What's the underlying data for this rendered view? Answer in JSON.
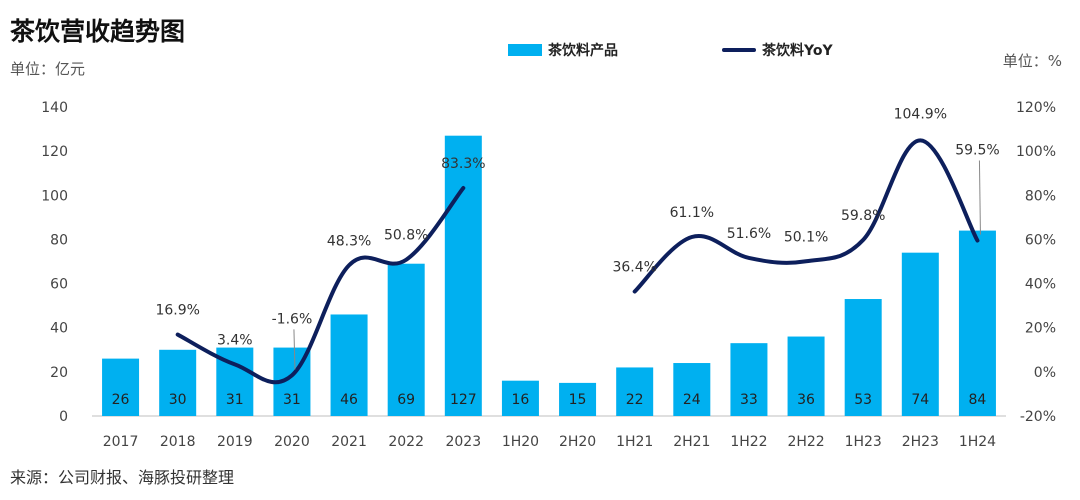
{
  "title": "茶饮营收趋势图",
  "unit_left": "单位：亿元",
  "unit_right": "单位：%",
  "source": "来源：公司财报、海豚投研整理",
  "colors": {
    "bar": "#00b0f0",
    "line": "#0d1f5c"
  },
  "chart_data": {
    "type": "bar",
    "categories": [
      "2017",
      "2018",
      "2019",
      "2020",
      "2021",
      "2022",
      "2023",
      "1H20",
      "2H20",
      "1H21",
      "2H21",
      "1H22",
      "2H22",
      "1H23",
      "2H23",
      "1H24"
    ],
    "series": [
      {
        "name": "茶饮料产品",
        "type": "bar",
        "axis": "left",
        "values": [
          26,
          30,
          31,
          31,
          46,
          69,
          127,
          16,
          15,
          22,
          24,
          33,
          36,
          53,
          74,
          84
        ],
        "labels": [
          "26",
          "30",
          "31",
          "31",
          "46",
          "69",
          "127",
          "16",
          "15",
          "22",
          "24",
          "33",
          "36",
          "53",
          "74",
          "84"
        ]
      },
      {
        "name": "茶饮料YoY",
        "type": "line",
        "axis": "right",
        "values": [
          null,
          16.9,
          3.4,
          -1.6,
          48.3,
          50.8,
          83.3,
          null,
          null,
          36.4,
          61.1,
          51.6,
          50.1,
          59.8,
          104.9,
          59.5
        ],
        "labels": [
          "",
          "16.9%",
          "3.4%",
          "-1.6%",
          "48.3%",
          "50.8%",
          "83.3%",
          "",
          "",
          "36.4%",
          "61.1%",
          "51.6%",
          "50.1%",
          "59.8%",
          "104.9%",
          "59.5%"
        ]
      }
    ],
    "y_left": {
      "ylim": [
        0,
        140
      ],
      "ticks": [
        "0",
        "20",
        "40",
        "60",
        "80",
        "100",
        "120",
        "140"
      ]
    },
    "y_right": {
      "ylim": [
        -20,
        120
      ],
      "ticks": [
        "-20%",
        "0%",
        "20%",
        "40%",
        "60%",
        "80%",
        "100%",
        "120%"
      ]
    },
    "grid": false,
    "legend_position": "top"
  }
}
